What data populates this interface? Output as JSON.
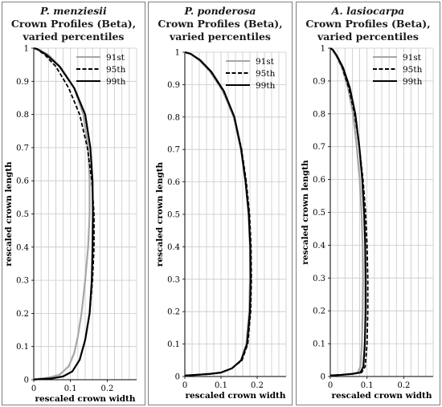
{
  "chart_data": [
    {
      "type": "line",
      "title_species": "P. menziesii",
      "title": "Crown Profiles (Beta), varied percentiles",
      "title_lines": [
        "Crown Profiles (Beta),",
        "varied percentiles"
      ],
      "xlabel": "rescaled crown width",
      "ylabel": "rescaled crown length",
      "xlim": [
        0,
        0.28
      ],
      "ylim": [
        0,
        1
      ],
      "xticks": [
        "0",
        "0.1",
        "0.2"
      ],
      "yticks": [
        "0",
        "0.1",
        "0.2",
        "0.3",
        "0.4",
        "0.5",
        "0.6",
        "0.7",
        "0.8",
        "0.9",
        "1"
      ],
      "grid": true,
      "legend": "top-right",
      "series": [
        {
          "name": "91st",
          "color": "#a6a6a6",
          "style": "solid",
          "points": [
            [
              0,
              0
            ],
            [
              0.005,
              0.002
            ],
            [
              0.015,
              0.003
            ],
            [
              0.04,
              0.006
            ],
            [
              0.07,
              0.015
            ],
            [
              0.095,
              0.04
            ],
            [
              0.11,
              0.08
            ],
            [
              0.12,
              0.13
            ],
            [
              0.13,
              0.2
            ],
            [
              0.14,
              0.3
            ],
            [
              0.148,
              0.4
            ],
            [
              0.152,
              0.5
            ],
            [
              0.152,
              0.6
            ],
            [
              0.148,
              0.7
            ],
            [
              0.135,
              0.8
            ],
            [
              0.11,
              0.88
            ],
            [
              0.075,
              0.94
            ],
            [
              0.04,
              0.98
            ],
            [
              0.01,
              0.997
            ],
            [
              0,
              1
            ]
          ]
        },
        {
          "name": "95th",
          "color": "#000000",
          "style": "dashed",
          "points": [
            [
              0,
              0
            ],
            [
              0.005,
              0.001
            ],
            [
              0.02,
              0.002
            ],
            [
              0.05,
              0.004
            ],
            [
              0.08,
              0.01
            ],
            [
              0.105,
              0.025
            ],
            [
              0.125,
              0.06
            ],
            [
              0.14,
              0.12
            ],
            [
              0.152,
              0.2
            ],
            [
              0.16,
              0.3
            ],
            [
              0.164,
              0.4
            ],
            [
              0.164,
              0.5
            ],
            [
              0.158,
              0.6
            ],
            [
              0.146,
              0.7
            ],
            [
              0.125,
              0.8
            ],
            [
              0.095,
              0.88
            ],
            [
              0.06,
              0.945
            ],
            [
              0.03,
              0.98
            ],
            [
              0.008,
              0.997
            ],
            [
              0,
              1
            ]
          ]
        },
        {
          "name": "99th",
          "color": "#000000",
          "style": "solid",
          "points": [
            [
              0,
              0
            ],
            [
              0.005,
              0.001
            ],
            [
              0.02,
              0.002
            ],
            [
              0.05,
              0.004
            ],
            [
              0.08,
              0.01
            ],
            [
              0.105,
              0.025
            ],
            [
              0.125,
              0.06
            ],
            [
              0.14,
              0.12
            ],
            [
              0.152,
              0.2
            ],
            [
              0.158,
              0.3
            ],
            [
              0.16,
              0.4
            ],
            [
              0.161,
              0.5
            ],
            [
              0.16,
              0.6
            ],
            [
              0.154,
              0.7
            ],
            [
              0.14,
              0.8
            ],
            [
              0.11,
              0.88
            ],
            [
              0.07,
              0.945
            ],
            [
              0.035,
              0.98
            ],
            [
              0.01,
              0.997
            ],
            [
              0,
              1
            ]
          ]
        }
      ]
    },
    {
      "type": "line",
      "title_species": "P. ponderosa",
      "title": "Crown Profiles (Beta), varied percentiles",
      "title_lines": [
        "Crown Profiles (Beta),",
        "varied percentiles"
      ],
      "xlabel": "rescaled crown width",
      "ylabel": "rescaled crown length",
      "xlim": [
        0,
        0.28
      ],
      "ylim": [
        0,
        1
      ],
      "xticks": [
        "0",
        "0.1",
        "0.2"
      ],
      "yticks": [
        "0",
        "0.1",
        "0.2",
        "0.3",
        "0.4",
        "0.5",
        "0.6",
        "0.7",
        "0.8",
        "0.9",
        "1"
      ],
      "grid": true,
      "legend": "top-right",
      "series": [
        {
          "name": "91st",
          "color": "#a6a6a6",
          "style": "solid",
          "points": [
            [
              0,
              0.003
            ],
            [
              0.03,
              0.005
            ],
            [
              0.07,
              0.008
            ],
            [
              0.1,
              0.012
            ],
            [
              0.13,
              0.025
            ],
            [
              0.155,
              0.05
            ],
            [
              0.17,
              0.1
            ],
            [
              0.178,
              0.2
            ],
            [
              0.18,
              0.3
            ],
            [
              0.18,
              0.4
            ],
            [
              0.176,
              0.5
            ],
            [
              0.168,
              0.6
            ],
            [
              0.155,
              0.7
            ],
            [
              0.135,
              0.8
            ],
            [
              0.105,
              0.88
            ],
            [
              0.07,
              0.94
            ],
            [
              0.04,
              0.975
            ],
            [
              0.015,
              0.995
            ],
            [
              0,
              1
            ]
          ]
        },
        {
          "name": "95th",
          "color": "#000000",
          "style": "dashed",
          "points": [
            [
              0,
              0.003
            ],
            [
              0.03,
              0.005
            ],
            [
              0.07,
              0.008
            ],
            [
              0.1,
              0.012
            ],
            [
              0.13,
              0.025
            ],
            [
              0.158,
              0.05
            ],
            [
              0.174,
              0.1
            ],
            [
              0.182,
              0.2
            ],
            [
              0.184,
              0.3
            ],
            [
              0.183,
              0.4
            ],
            [
              0.179,
              0.5
            ],
            [
              0.17,
              0.6
            ],
            [
              0.157,
              0.7
            ],
            [
              0.137,
              0.8
            ],
            [
              0.107,
              0.88
            ],
            [
              0.072,
              0.94
            ],
            [
              0.042,
              0.975
            ],
            [
              0.016,
              0.995
            ],
            [
              0,
              1
            ]
          ]
        },
        {
          "name": "99th",
          "color": "#000000",
          "style": "solid",
          "points": [
            [
              0,
              0.003
            ],
            [
              0.03,
              0.005
            ],
            [
              0.07,
              0.008
            ],
            [
              0.1,
              0.012
            ],
            [
              0.13,
              0.025
            ],
            [
              0.156,
              0.05
            ],
            [
              0.172,
              0.1
            ],
            [
              0.18,
              0.2
            ],
            [
              0.182,
              0.3
            ],
            [
              0.181,
              0.4
            ],
            [
              0.177,
              0.5
            ],
            [
              0.168,
              0.6
            ],
            [
              0.156,
              0.7
            ],
            [
              0.137,
              0.8
            ],
            [
              0.108,
              0.88
            ],
            [
              0.073,
              0.94
            ],
            [
              0.043,
              0.975
            ],
            [
              0.016,
              0.995
            ],
            [
              0,
              1
            ]
          ]
        }
      ]
    },
    {
      "type": "line",
      "title_species": "A. lasiocarpa",
      "title": "Crown Profiles (Beta), varied percentiles",
      "title_lines": [
        "Crown Profiles (Beta),",
        "varied percentiles"
      ],
      "xlabel": "rescaled crown width",
      "ylabel": "rescaled crown length",
      "xlim": [
        0,
        0.28
      ],
      "ylim": [
        0,
        1
      ],
      "xticks": [
        "0",
        "0.1",
        "0.2"
      ],
      "yticks": [
        "0",
        "0.1",
        "0.2",
        "0.3",
        "0.4",
        "0.5",
        "0.6",
        "0.7",
        "0.8",
        "0.9",
        "1"
      ],
      "grid": true,
      "legend": "top-right",
      "series": [
        {
          "name": "91st",
          "color": "#a6a6a6",
          "style": "solid",
          "points": [
            [
              0,
              0.003
            ],
            [
              0.03,
              0.005
            ],
            [
              0.06,
              0.008
            ],
            [
              0.075,
              0.012
            ],
            [
              0.082,
              0.03
            ],
            [
              0.086,
              0.1
            ],
            [
              0.088,
              0.2
            ],
            [
              0.089,
              0.3
            ],
            [
              0.088,
              0.4
            ],
            [
              0.085,
              0.5
            ],
            [
              0.08,
              0.6
            ],
            [
              0.072,
              0.7
            ],
            [
              0.062,
              0.8
            ],
            [
              0.048,
              0.88
            ],
            [
              0.032,
              0.94
            ],
            [
              0.017,
              0.975
            ],
            [
              0.006,
              0.995
            ],
            [
              0,
              1
            ]
          ]
        },
        {
          "name": "95th",
          "color": "#000000",
          "style": "dashed",
          "points": [
            [
              0,
              0.003
            ],
            [
              0.03,
              0.005
            ],
            [
              0.06,
              0.008
            ],
            [
              0.085,
              0.012
            ],
            [
              0.095,
              0.03
            ],
            [
              0.1,
              0.1
            ],
            [
              0.102,
              0.2
            ],
            [
              0.102,
              0.3
            ],
            [
              0.1,
              0.4
            ],
            [
              0.096,
              0.5
            ],
            [
              0.089,
              0.6
            ],
            [
              0.079,
              0.7
            ],
            [
              0.066,
              0.8
            ],
            [
              0.05,
              0.88
            ],
            [
              0.033,
              0.94
            ],
            [
              0.018,
              0.975
            ],
            [
              0.006,
              0.995
            ],
            [
              0,
              1
            ]
          ]
        },
        {
          "name": "99th",
          "color": "#000000",
          "style": "solid",
          "points": [
            [
              0,
              0.003
            ],
            [
              0.03,
              0.005
            ],
            [
              0.06,
              0.008
            ],
            [
              0.082,
              0.012
            ],
            [
              0.09,
              0.03
            ],
            [
              0.094,
              0.1
            ],
            [
              0.096,
              0.2
            ],
            [
              0.096,
              0.3
            ],
            [
              0.095,
              0.4
            ],
            [
              0.092,
              0.5
            ],
            [
              0.087,
              0.6
            ],
            [
              0.079,
              0.7
            ],
            [
              0.068,
              0.8
            ],
            [
              0.053,
              0.88
            ],
            [
              0.035,
              0.94
            ],
            [
              0.019,
              0.975
            ],
            [
              0.007,
              0.995
            ],
            [
              0,
              1
            ]
          ]
        }
      ]
    }
  ]
}
